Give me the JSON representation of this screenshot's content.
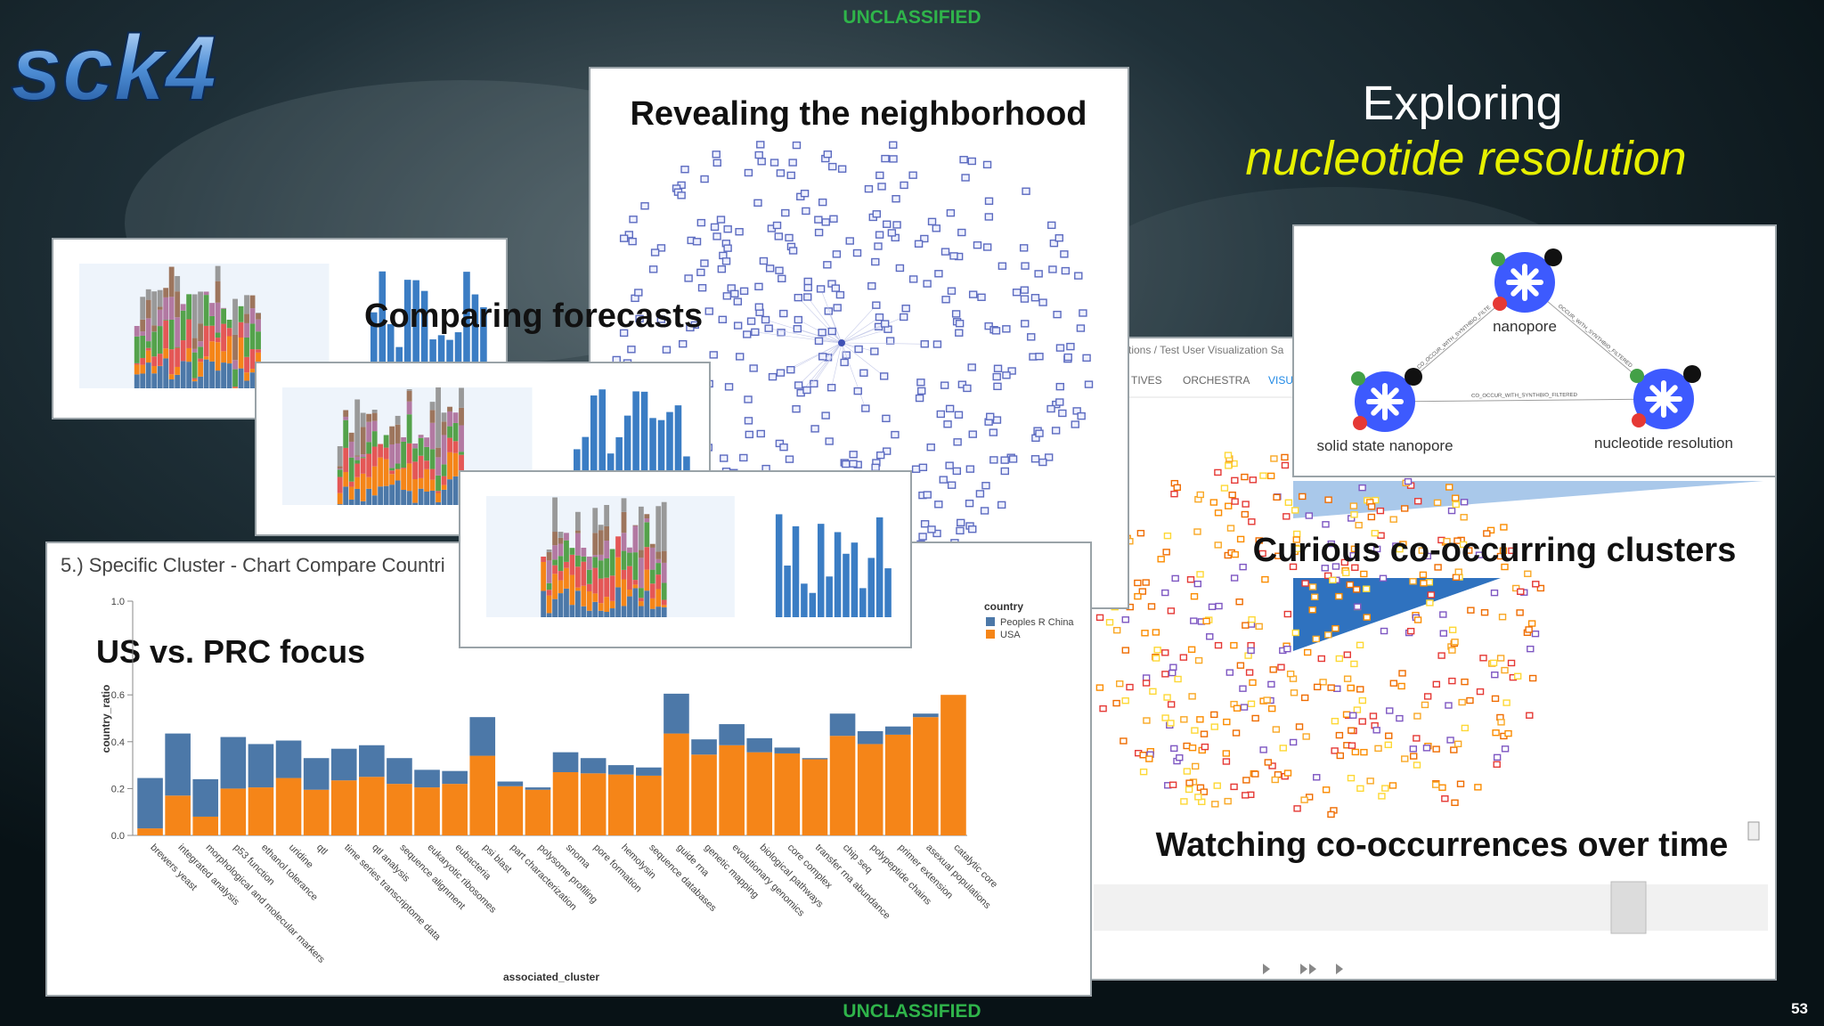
{
  "slide": {
    "classification_top": "UNCLASSIFIED",
    "classification_bottom": "UNCLASSIFIED",
    "logo": "sck4",
    "title_line1": "Exploring",
    "title_line2": "nucleotide resolution",
    "page_number": "53"
  },
  "captions": {
    "neighborhood": "Revealing the neighborhood",
    "forecasts": "Comparing forecasts",
    "focus": "US vs. PRC focus",
    "clusters": "Curious co-occurring clusters",
    "timeline": "Watching co-occurrences over time"
  },
  "app": {
    "breadcrumb": "tions / Test User Visualization Sa",
    "tabs": [
      "TIVES",
      "ORCHESTRA",
      "VISU"
    ]
  },
  "graph": {
    "nodes": [
      {
        "label": "nanopore"
      },
      {
        "label": "solid state nanopore"
      },
      {
        "label": "nucleotide resolution"
      }
    ],
    "edges": [
      {
        "label": "CO_OCCUR_WITH_SYNTHBIO_FILTE"
      },
      {
        "label": "OCCUR_WITH_SYNTHBIO_FILTERED"
      },
      {
        "label": "CO_OCCUR_WITH_SYNTHBIO_FILTERED"
      }
    ]
  },
  "chart_panel": {
    "title": "5.) Specific Cluster - Chart Compare Countri"
  },
  "chart_data": {
    "type": "bar",
    "stacked": true,
    "xlabel": "associated_cluster",
    "ylabel": "country_ratio",
    "legend_title": "country",
    "categories": [
      "brewers yeast",
      "integrated analysis",
      "morphological and molecular markers",
      "p53 function",
      "ethanol tolerance",
      "uridine",
      "qtl",
      "time series transcriptome data",
      "qtl analysis",
      "sequence alignment",
      "eukaryotic ribosomes",
      "eubacteria",
      "psi blast",
      "part characterization",
      "polysome profiling",
      "snoma",
      "pore formation",
      "hemolysin",
      "sequence databases",
      "guide rna",
      "genetic mapping",
      "evolutionary genomics",
      "biological pathways",
      "core complex",
      "transfer rna abundance",
      "chip seq",
      "polypeptide chains",
      "primer extension",
      "asexual populations",
      "catalytic core"
    ],
    "series": [
      {
        "name": "Peoples R China",
        "color": "#4c78a8",
        "values": [
          0.215,
          0.265,
          0.16,
          0.22,
          0.185,
          0.16,
          0.135,
          0.135,
          0.135,
          0.11,
          0.075,
          0.055,
          0.165,
          0.02,
          0.01,
          0.085,
          0.065,
          0.04,
          0.035,
          0.17,
          0.065,
          0.09,
          0.06,
          0.025,
          0.005,
          0.095,
          0.055,
          0.035,
          0.015,
          0
        ]
      },
      {
        "name": "USA",
        "color": "#f58518",
        "values": [
          0.03,
          0.17,
          0.08,
          0.2,
          0.205,
          0.245,
          0.195,
          0.235,
          0.25,
          0.22,
          0.205,
          0.22,
          0.34,
          0.21,
          0.195,
          0.27,
          0.265,
          0.26,
          0.255,
          0.435,
          0.345,
          0.385,
          0.355,
          0.35,
          0.325,
          0.425,
          0.39,
          0.43,
          0.505,
          0.6
        ]
      }
    ],
    "ylim": [
      0,
      1
    ],
    "yticks": [
      {
        "value": 0,
        "label": "0.0"
      },
      {
        "value": 0.2,
        "label": "0.2"
      },
      {
        "value": 0.4,
        "label": "0.4"
      },
      {
        "value": 0.6,
        "label": "0.6"
      },
      {
        "value": 1,
        "label": "1.0"
      }
    ]
  }
}
